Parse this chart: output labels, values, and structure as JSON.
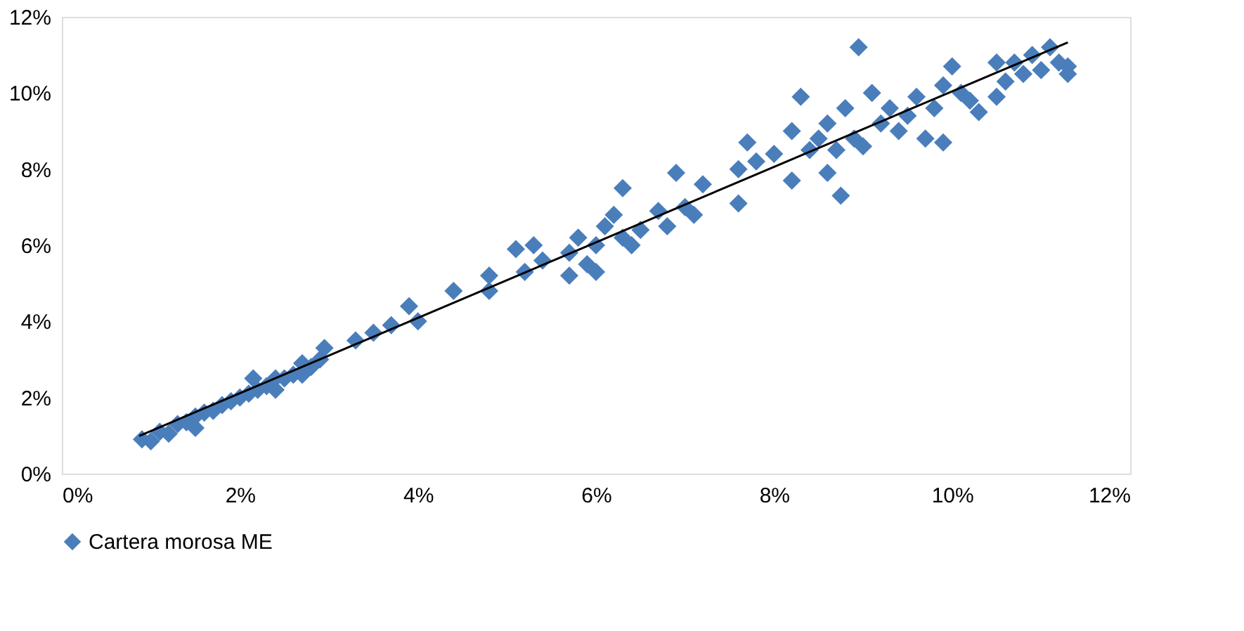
{
  "chart_data": {
    "type": "scatter",
    "marker": "diamond",
    "legend": "bottom",
    "grid": false,
    "xlim": [
      0,
      0.12
    ],
    "ylim": [
      0,
      0.12
    ],
    "xticks": [
      {
        "value": 0,
        "label": "0%"
      },
      {
        "value": 0.02,
        "label": "2%"
      },
      {
        "value": 0.04,
        "label": "4%"
      },
      {
        "value": 0.06,
        "label": "6%"
      },
      {
        "value": 0.08,
        "label": "8%"
      },
      {
        "value": 0.1,
        "label": "10%"
      },
      {
        "value": 0.12,
        "label": "12%"
      }
    ],
    "yticks": [
      {
        "value": 0,
        "label": "0%"
      },
      {
        "value": 0.02,
        "label": "2%"
      },
      {
        "value": 0.04,
        "label": "4%"
      },
      {
        "value": 0.06,
        "label": "6%"
      },
      {
        "value": 0.08,
        "label": "8%"
      },
      {
        "value": 0.1,
        "label": "10%"
      },
      {
        "value": 0.12,
        "label": "12%"
      }
    ],
    "series": [
      {
        "name": "Cartera morosa ME",
        "color": "#4a7ebb",
        "x": [
          0.009,
          0.01,
          0.011,
          0.012,
          0.013,
          0.014,
          0.015,
          0.015,
          0.016,
          0.017,
          0.018,
          0.019,
          0.02,
          0.021,
          0.0215,
          0.022,
          0.023,
          0.024,
          0.024,
          0.025,
          0.026,
          0.027,
          0.027,
          0.028,
          0.029,
          0.0295,
          0.033,
          0.035,
          0.037,
          0.039,
          0.04,
          0.044,
          0.048,
          0.048,
          0.051,
          0.052,
          0.053,
          0.054,
          0.057,
          0.057,
          0.058,
          0.059,
          0.06,
          0.06,
          0.061,
          0.062,
          0.063,
          0.063,
          0.064,
          0.065,
          0.067,
          0.068,
          0.069,
          0.07,
          0.071,
          0.072,
          0.076,
          0.076,
          0.077,
          0.078,
          0.08,
          0.082,
          0.082,
          0.083,
          0.084,
          0.085,
          0.086,
          0.086,
          0.087,
          0.0875,
          0.088,
          0.089,
          0.0895,
          0.09,
          0.091,
          0.092,
          0.093,
          0.094,
          0.095,
          0.096,
          0.097,
          0.098,
          0.099,
          0.099,
          0.1,
          0.101,
          0.102,
          0.103,
          0.105,
          0.105,
          0.106,
          0.107,
          0.108,
          0.109,
          0.11,
          0.111,
          0.112,
          0.113,
          0.113
        ],
        "values": [
          0.009,
          0.0085,
          0.011,
          0.0105,
          0.013,
          0.0135,
          0.015,
          0.012,
          0.016,
          0.0165,
          0.018,
          0.019,
          0.02,
          0.021,
          0.025,
          0.022,
          0.023,
          0.022,
          0.025,
          0.025,
          0.026,
          0.029,
          0.026,
          0.028,
          0.03,
          0.033,
          0.035,
          0.037,
          0.039,
          0.044,
          0.04,
          0.048,
          0.052,
          0.048,
          0.059,
          0.053,
          0.06,
          0.056,
          0.052,
          0.058,
          0.062,
          0.055,
          0.06,
          0.053,
          0.065,
          0.068,
          0.075,
          0.062,
          0.06,
          0.064,
          0.069,
          0.065,
          0.079,
          0.07,
          0.068,
          0.076,
          0.08,
          0.071,
          0.087,
          0.082,
          0.084,
          0.09,
          0.077,
          0.099,
          0.085,
          0.088,
          0.092,
          0.079,
          0.085,
          0.073,
          0.096,
          0.088,
          0.112,
          0.086,
          0.1,
          0.092,
          0.096,
          0.09,
          0.094,
          0.099,
          0.088,
          0.096,
          0.087,
          0.102,
          0.107,
          0.1,
          0.098,
          0.095,
          0.108,
          0.099,
          0.103,
          0.108,
          0.105,
          0.11,
          0.106,
          0.112,
          0.108,
          0.105,
          0.107
        ]
      },
      {
        "type": "line",
        "color": "#000000",
        "line_style": "solid",
        "marker": "none",
        "x": [
          0.0087,
          0.113
        ],
        "values": [
          0.0099,
          0.1133
        ]
      }
    ]
  }
}
